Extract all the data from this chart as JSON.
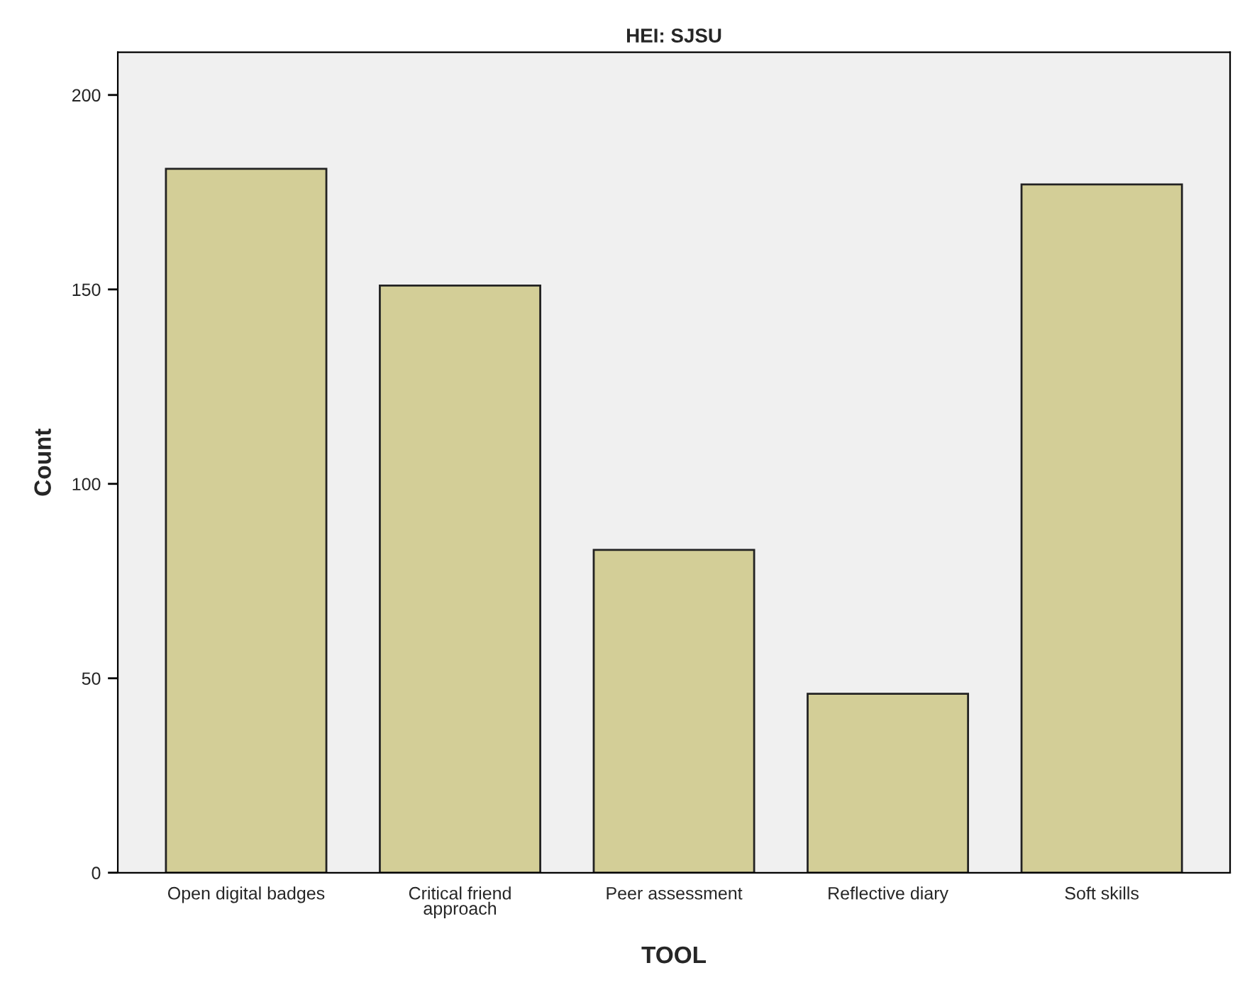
{
  "chart_data": {
    "type": "bar",
    "title": "HEI: SJSU",
    "xlabel": "TOOL",
    "ylabel": "Count",
    "categories": [
      "Open digital badges",
      "Critical friend approach",
      "Peer assessment",
      "Reflective diary",
      "Soft skills"
    ],
    "values": [
      181,
      151,
      83,
      46,
      177
    ],
    "color": "#d3ce97",
    "ylim": [
      0,
      211
    ],
    "yticks": [
      0,
      50,
      100,
      150,
      200
    ],
    "grid": false,
    "legend": false
  }
}
